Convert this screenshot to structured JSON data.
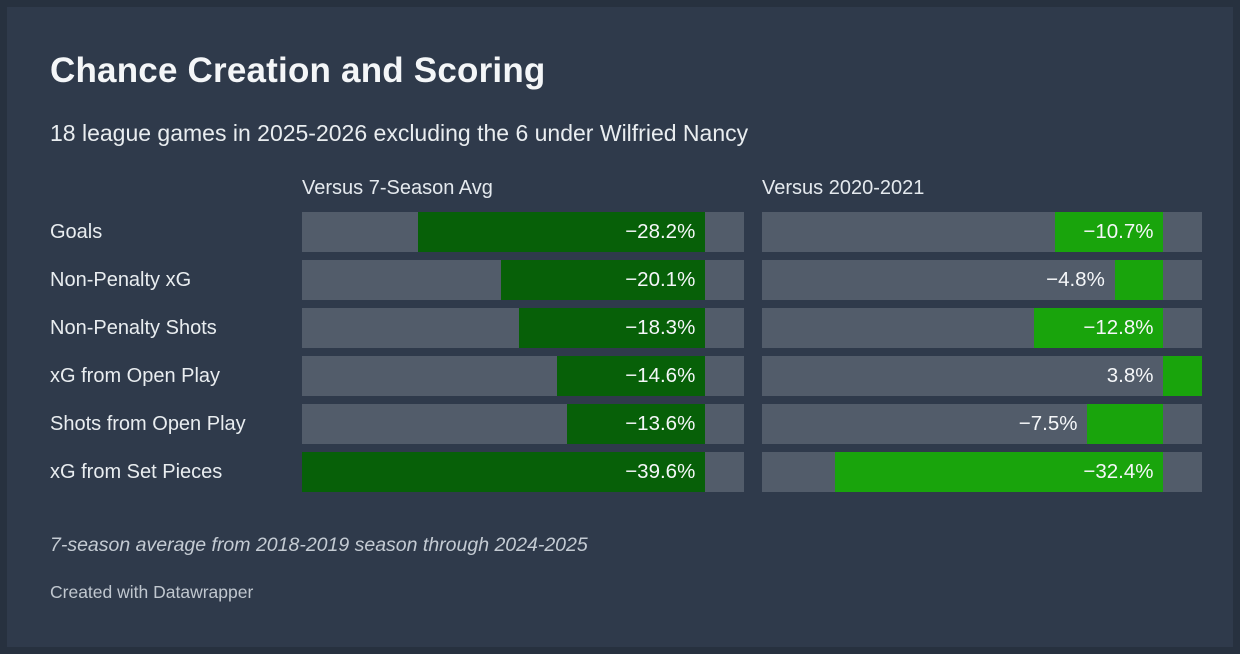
{
  "header": {
    "title": "Chance Creation and Scoring",
    "subtitle": "18 league games in 2025-2026 excluding the 6 under Wilfried Nancy"
  },
  "chart_data": {
    "type": "bar",
    "orientation": "horizontal",
    "title": "Chance Creation and Scoring",
    "subtitle": "18 league games in 2025-2026 excluding the 6 under Wilfried Nancy",
    "categories": [
      "Goals",
      "Non-Penalty xG",
      "Non-Penalty Shots",
      "xG from Open Play",
      "Shots from Open Play",
      "xG from Set Pieces"
    ],
    "series": [
      {
        "name": "Versus 7-Season Avg",
        "values": [
          -28.2,
          -20.1,
          -18.3,
          -14.6,
          -13.6,
          -39.6
        ],
        "bar_color": "#076008"
      },
      {
        "name": "Versus 2020-2021",
        "values": [
          -10.7,
          -4.8,
          -12.8,
          3.8,
          -7.5,
          -32.4
        ],
        "bar_color": "#19a40c"
      }
    ],
    "value_labels": [
      [
        "−28.2%",
        "−20.1%",
        "−18.3%",
        "−14.6%",
        "−13.6%",
        "−39.6%"
      ],
      [
        "−10.7%",
        "−4.8%",
        "−12.8%",
        "3.8%",
        "−7.5%",
        "−32.4%"
      ]
    ],
    "axis_min": -39.6,
    "axis_max": 3.8,
    "unit": "%",
    "grid": false,
    "legend_position": "column-headers",
    "track_color": "#525c6a",
    "background_color": "#2f3a4b"
  },
  "footer": {
    "note": "7-season average from 2018-2019 season through 2024-2025",
    "attribution": "Created with Datawrapper"
  },
  "colors": {
    "background": "#2f3a4b",
    "frame": "#27313f",
    "track": "#525c6a",
    "bar_dark_green": "#076008",
    "bar_bright_green": "#19a40c",
    "title_text": "#f4f6f8",
    "body_text": "#e9edf0",
    "muted_text": "#c4cbd3"
  }
}
